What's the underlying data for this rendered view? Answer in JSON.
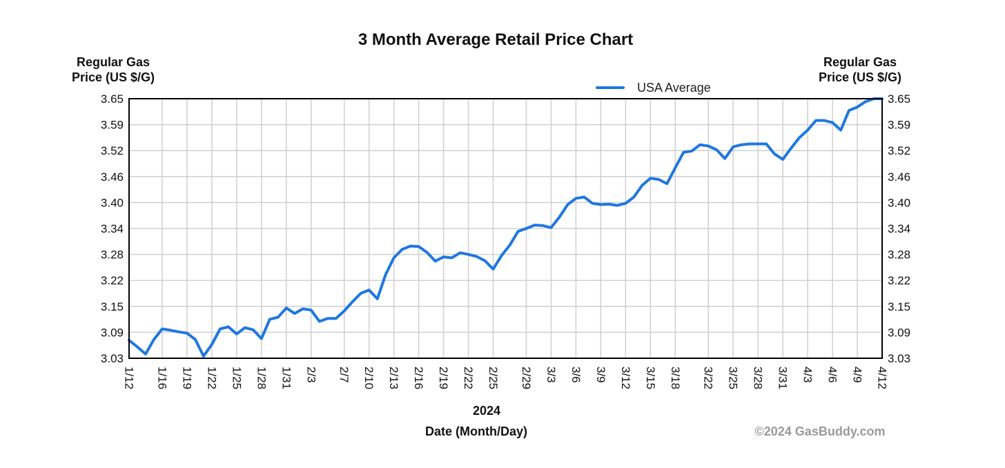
{
  "colors": {
    "series": "#1f77e0",
    "grid": "#cfcfcf",
    "text": "#111111",
    "copyright": "#9a9a9a"
  },
  "chart_data": {
    "type": "line",
    "title": "3 Month Average Retail Price Chart",
    "ylabel_left": [
      "Regular Gas",
      "Price (US $/G)"
    ],
    "ylabel_right": [
      "Regular Gas",
      "Price (US $/G)"
    ],
    "xlabel_year": "2024",
    "xlabel": "Date (Month/Day)",
    "copyright": "©2024 GasBuddy.com",
    "legend": {
      "label": "USA Average",
      "position": "top-right"
    },
    "grid": true,
    "ylim": [
      3.03,
      3.65
    ],
    "yticks": [
      "3.65",
      "3.59",
      "3.52",
      "3.46",
      "3.40",
      "3.34",
      "3.28",
      "3.22",
      "3.15",
      "3.09",
      "3.03"
    ],
    "xlim": [
      "2024-01-12",
      "2024-04-12"
    ],
    "xticks": [
      {
        "label": "1/12",
        "date": "2024-01-12"
      },
      {
        "label": "1/16",
        "date": "2024-01-16"
      },
      {
        "label": "1/19",
        "date": "2024-01-19"
      },
      {
        "label": "1/22",
        "date": "2024-01-22"
      },
      {
        "label": "1/25",
        "date": "2024-01-25"
      },
      {
        "label": "1/28",
        "date": "2024-01-28"
      },
      {
        "label": "1/31",
        "date": "2024-01-31"
      },
      {
        "label": "2/3",
        "date": "2024-02-03"
      },
      {
        "label": "2/7",
        "date": "2024-02-07"
      },
      {
        "label": "2/10",
        "date": "2024-02-10"
      },
      {
        "label": "2/13",
        "date": "2024-02-13"
      },
      {
        "label": "2/16",
        "date": "2024-02-16"
      },
      {
        "label": "2/19",
        "date": "2024-02-19"
      },
      {
        "label": "2/22",
        "date": "2024-02-22"
      },
      {
        "label": "2/25",
        "date": "2024-02-25"
      },
      {
        "label": "2/29",
        "date": "2024-02-29"
      },
      {
        "label": "3/3",
        "date": "2024-03-03"
      },
      {
        "label": "3/6",
        "date": "2024-03-06"
      },
      {
        "label": "3/9",
        "date": "2024-03-09"
      },
      {
        "label": "3/12",
        "date": "2024-03-12"
      },
      {
        "label": "3/15",
        "date": "2024-03-15"
      },
      {
        "label": "3/18",
        "date": "2024-03-18"
      },
      {
        "label": "3/22",
        "date": "2024-03-22"
      },
      {
        "label": "3/25",
        "date": "2024-03-25"
      },
      {
        "label": "3/28",
        "date": "2024-03-28"
      },
      {
        "label": "3/31",
        "date": "2024-03-31"
      },
      {
        "label": "4/3",
        "date": "2024-04-03"
      },
      {
        "label": "4/6",
        "date": "2024-04-06"
      },
      {
        "label": "4/9",
        "date": "2024-04-09"
      },
      {
        "label": "4/12",
        "date": "2024-04-12"
      }
    ],
    "series": [
      {
        "name": "USA Average",
        "color": "#1f77e0",
        "points": [
          [
            "2024-01-12",
            3.073
          ],
          [
            "2024-01-13",
            3.057
          ],
          [
            "2024-01-14",
            3.04
          ],
          [
            "2024-01-15",
            3.075
          ],
          [
            "2024-01-16",
            3.1
          ],
          [
            "2024-01-17",
            3.097
          ],
          [
            "2024-01-18",
            3.093
          ],
          [
            "2024-01-19",
            3.09
          ],
          [
            "2024-01-20",
            3.075
          ],
          [
            "2024-01-21",
            3.035
          ],
          [
            "2024-01-22",
            3.063
          ],
          [
            "2024-01-23",
            3.1
          ],
          [
            "2024-01-24",
            3.105
          ],
          [
            "2024-01-25",
            3.088
          ],
          [
            "2024-01-26",
            3.103
          ],
          [
            "2024-01-27",
            3.098
          ],
          [
            "2024-01-28",
            3.077
          ],
          [
            "2024-01-29",
            3.123
          ],
          [
            "2024-01-30",
            3.128
          ],
          [
            "2024-01-31",
            3.15
          ],
          [
            "2024-02-01",
            3.137
          ],
          [
            "2024-02-02",
            3.148
          ],
          [
            "2024-02-03",
            3.145
          ],
          [
            "2024-02-04",
            3.118
          ],
          [
            "2024-02-05",
            3.125
          ],
          [
            "2024-02-06",
            3.125
          ],
          [
            "2024-02-07",
            3.143
          ],
          [
            "2024-02-08",
            3.165
          ],
          [
            "2024-02-09",
            3.185
          ],
          [
            "2024-02-10",
            3.193
          ],
          [
            "2024-02-11",
            3.172
          ],
          [
            "2024-02-12",
            3.23
          ],
          [
            "2024-02-13",
            3.27
          ],
          [
            "2024-02-14",
            3.29
          ],
          [
            "2024-02-15",
            3.298
          ],
          [
            "2024-02-16",
            3.297
          ],
          [
            "2024-02-17",
            3.283
          ],
          [
            "2024-02-18",
            3.262
          ],
          [
            "2024-02-19",
            3.272
          ],
          [
            "2024-02-20",
            3.27
          ],
          [
            "2024-02-21",
            3.282
          ],
          [
            "2024-02-22",
            3.278
          ],
          [
            "2024-02-23",
            3.273
          ],
          [
            "2024-02-24",
            3.263
          ],
          [
            "2024-02-25",
            3.243
          ],
          [
            "2024-02-26",
            3.275
          ],
          [
            "2024-02-27",
            3.3
          ],
          [
            "2024-02-28",
            3.333
          ],
          [
            "2024-02-29",
            3.34
          ],
          [
            "2024-03-01",
            3.348
          ],
          [
            "2024-03-02",
            3.347
          ],
          [
            "2024-03-03",
            3.342
          ],
          [
            "2024-03-04",
            3.367
          ],
          [
            "2024-03-05",
            3.397
          ],
          [
            "2024-03-06",
            3.412
          ],
          [
            "2024-03-07",
            3.415
          ],
          [
            "2024-03-08",
            3.4
          ],
          [
            "2024-03-09",
            3.397
          ],
          [
            "2024-03-10",
            3.398
          ],
          [
            "2024-03-11",
            3.395
          ],
          [
            "2024-03-12",
            3.4
          ],
          [
            "2024-03-13",
            3.415
          ],
          [
            "2024-03-14",
            3.443
          ],
          [
            "2024-03-15",
            3.46
          ],
          [
            "2024-03-16",
            3.457
          ],
          [
            "2024-03-17",
            3.447
          ],
          [
            "2024-03-18",
            3.485
          ],
          [
            "2024-03-19",
            3.522
          ],
          [
            "2024-03-20",
            3.525
          ],
          [
            "2024-03-21",
            3.54
          ],
          [
            "2024-03-22",
            3.537
          ],
          [
            "2024-03-23",
            3.528
          ],
          [
            "2024-03-24",
            3.507
          ],
          [
            "2024-03-25",
            3.535
          ],
          [
            "2024-03-26",
            3.54
          ],
          [
            "2024-03-27",
            3.542
          ],
          [
            "2024-03-28",
            3.542
          ],
          [
            "2024-03-29",
            3.542
          ],
          [
            "2024-03-30",
            3.518
          ],
          [
            "2024-03-31",
            3.505
          ],
          [
            "2024-04-01",
            3.532
          ],
          [
            "2024-04-02",
            3.557
          ],
          [
            "2024-04-03",
            3.575
          ],
          [
            "2024-04-04",
            3.598
          ],
          [
            "2024-04-05",
            3.598
          ],
          [
            "2024-04-06",
            3.593
          ],
          [
            "2024-04-07",
            3.575
          ],
          [
            "2024-04-08",
            3.622
          ],
          [
            "2024-04-09",
            3.63
          ],
          [
            "2024-04-10",
            3.643
          ],
          [
            "2024-04-11",
            3.65
          ],
          [
            "2024-04-12",
            3.65
          ]
        ]
      }
    ]
  }
}
